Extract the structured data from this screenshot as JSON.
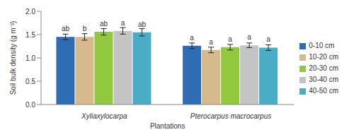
{
  "chart_data": {
    "type": "bar",
    "x_label": "Plantations",
    "y_label": "Soil bulk density (g m⁻³)",
    "categories": [
      "Xyliaxylocarpa",
      "Pterocarpus macrocarpus"
    ],
    "series": [
      {
        "name": "0-10 cm",
        "color": "#2e6db4",
        "values": [
          1.45,
          1.26
        ],
        "errors": [
          0.06,
          0.06
        ],
        "significance": [
          "ab",
          "a"
        ]
      },
      {
        "name": "10-20 cm",
        "color": "#d6b98c",
        "values": [
          1.45,
          1.17
        ],
        "errors": [
          0.07,
          0.06
        ],
        "significance": [
          "b",
          "a"
        ]
      },
      {
        "name": "20-30 cm",
        "color": "#92c83e",
        "values": [
          1.56,
          1.23
        ],
        "errors": [
          0.07,
          0.06
        ],
        "significance": [
          "ab",
          "a"
        ]
      },
      {
        "name": "30-40 cm",
        "color": "#c4c4c4",
        "values": [
          1.58,
          1.27
        ],
        "errors": [
          0.07,
          0.05
        ],
        "significance": [
          "a",
          "a"
        ]
      },
      {
        "name": "40-50 cm",
        "color": "#4bacc6",
        "values": [
          1.55,
          1.22
        ],
        "errors": [
          0.08,
          0.06
        ],
        "significance": [
          "ab",
          "a"
        ]
      }
    ],
    "ylim": [
      0,
      2
    ],
    "yticks": [
      {
        "value": 0,
        "label": "0.0"
      },
      {
        "value": 0.5,
        "label": "0.5"
      },
      {
        "value": 1,
        "label": "1.0"
      },
      {
        "value": 1.5,
        "label": "1.5"
      },
      {
        "value": 2,
        "label": "2.0"
      }
    ],
    "grid": false,
    "legend": "right"
  }
}
